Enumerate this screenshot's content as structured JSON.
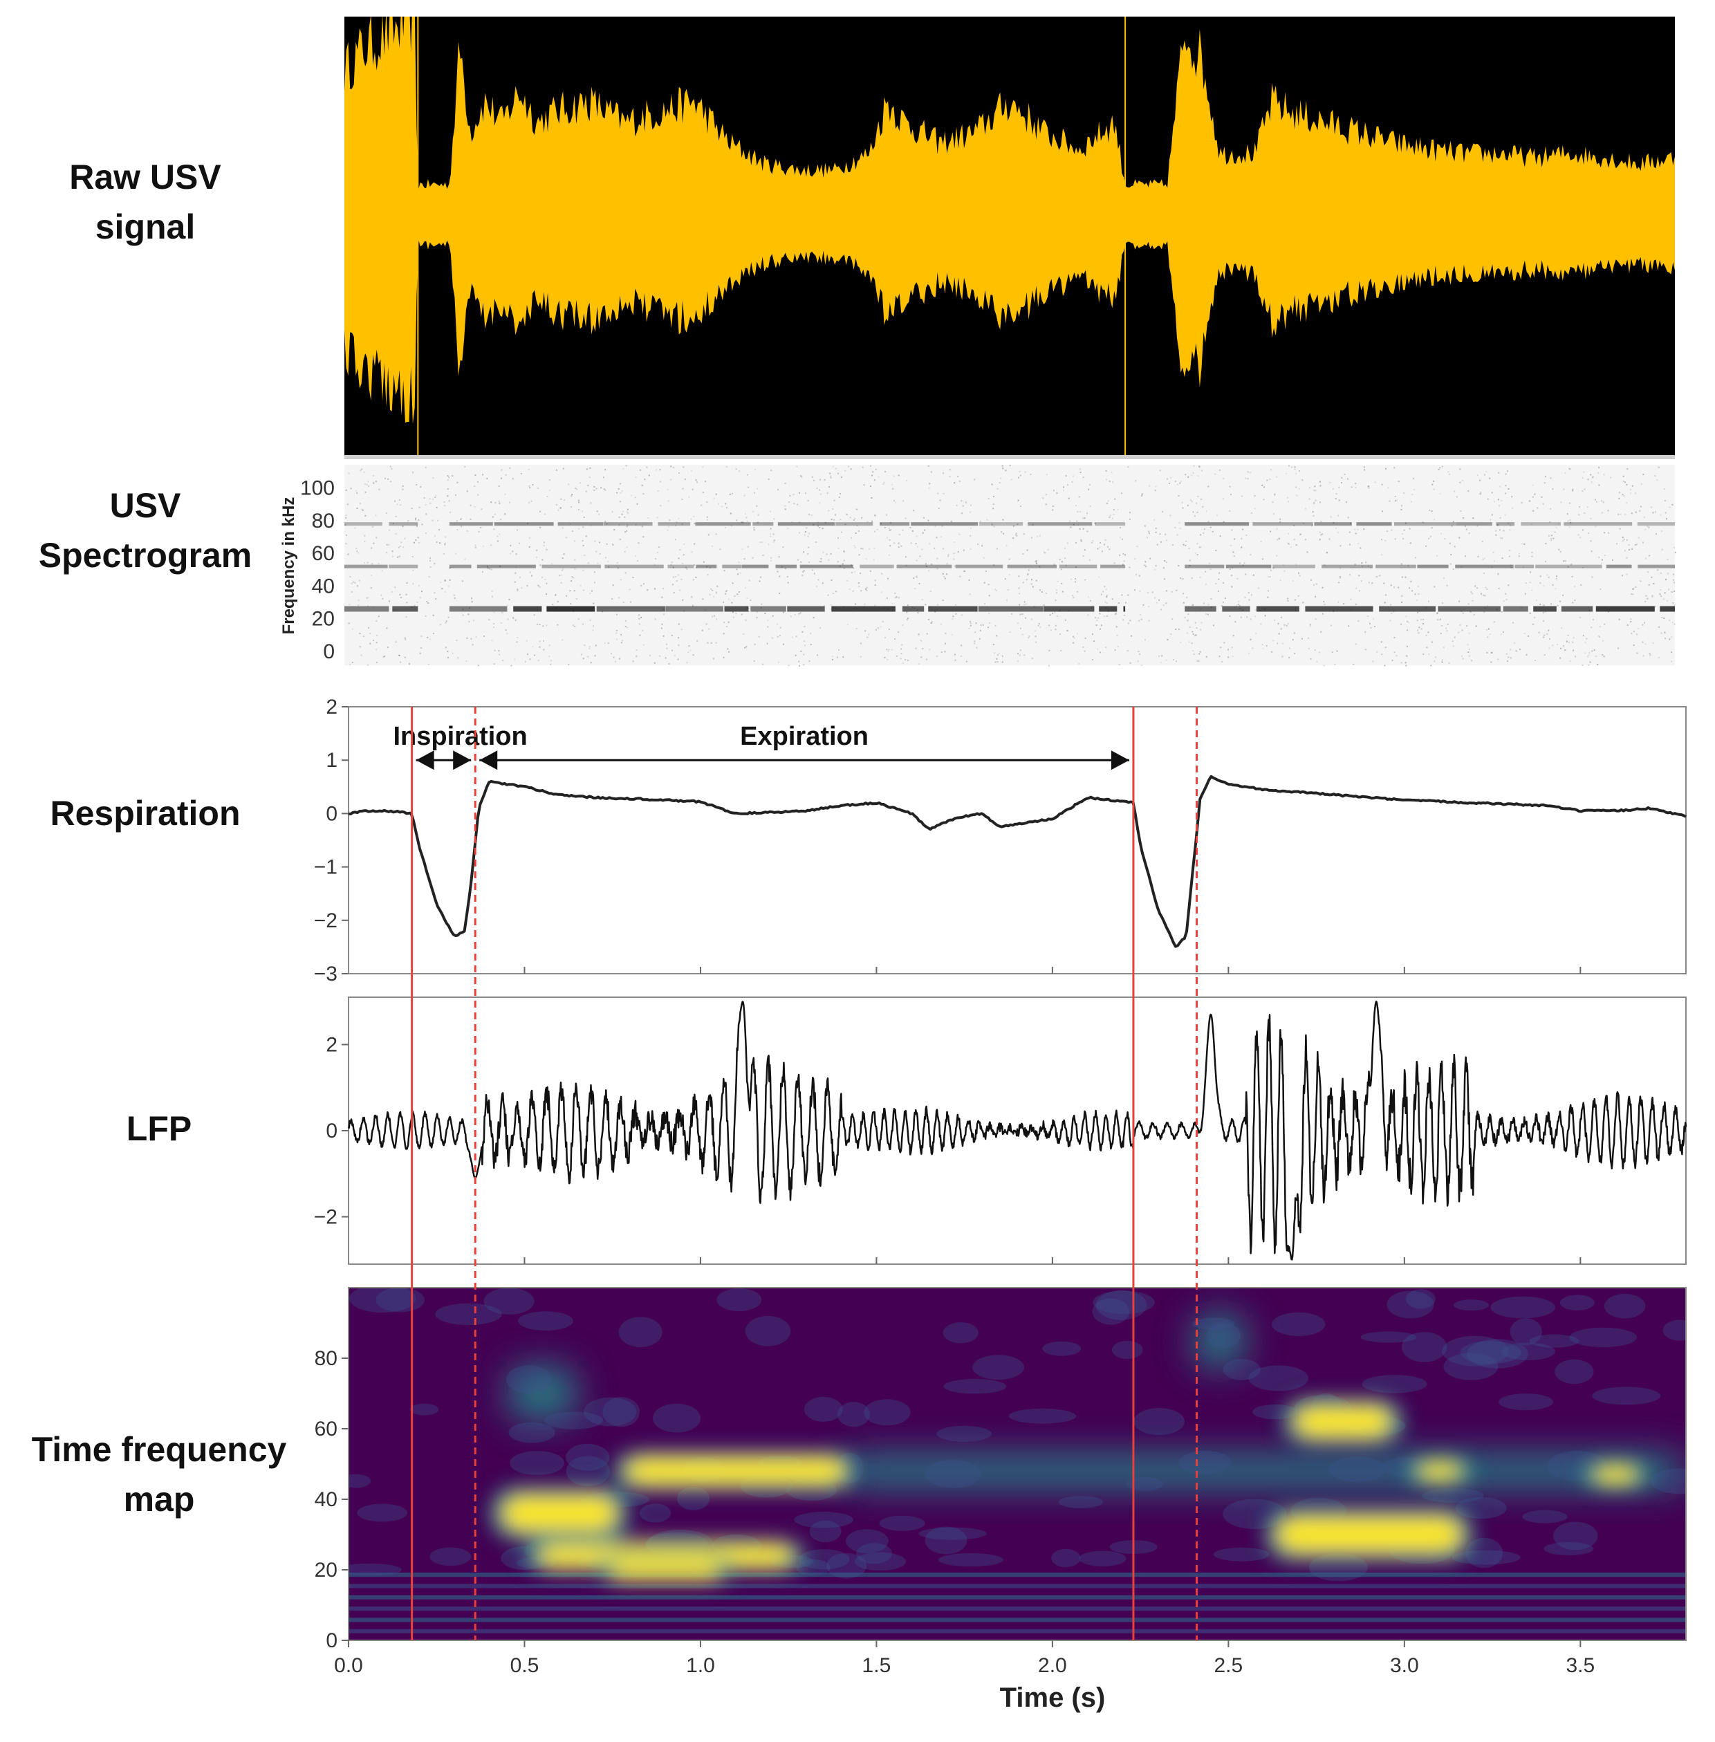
{
  "panel_labels": {
    "raw": [
      "Raw USV",
      "signal"
    ],
    "spectrogram": [
      "USV",
      "Spectrogram"
    ],
    "respiration": "Respiration",
    "lfp": "LFP",
    "tfmap": [
      "Time frequency",
      "map"
    ]
  },
  "colors": {
    "raw_bg": "#000000",
    "raw_signal": "#FFC000",
    "trace": "#222222",
    "marker": "#E8403A",
    "tf_low": "#440154",
    "tf_mid": "#21918C",
    "tf_high": "#FDE725"
  },
  "chart_data": [
    {
      "id": "raw_usv",
      "type": "area",
      "description_hidden": true,
      "x_range": [
        0.0,
        3.8
      ],
      "envelope": {
        "x": [
          0.0,
          0.05,
          0.1,
          0.15,
          0.2,
          0.21,
          0.3,
          0.33,
          0.36,
          0.4,
          0.45,
          0.5,
          0.55,
          0.6,
          0.7,
          0.8,
          0.9,
          1.0,
          1.1,
          1.2,
          1.3,
          1.4,
          1.5,
          1.55,
          1.6,
          1.7,
          1.8,
          1.9,
          2.0,
          2.1,
          2.2,
          2.23,
          2.3,
          2.35,
          2.4,
          2.45,
          2.5,
          2.6,
          2.65,
          2.7,
          2.8,
          2.9,
          3.0,
          3.1,
          3.2,
          3.3,
          3.4,
          3.5,
          3.6,
          3.7,
          3.8
        ],
        "amp": [
          0.7,
          0.8,
          0.85,
          0.9,
          0.95,
          0.15,
          0.15,
          0.82,
          0.4,
          0.55,
          0.45,
          0.6,
          0.45,
          0.5,
          0.55,
          0.45,
          0.5,
          0.55,
          0.35,
          0.25,
          0.22,
          0.22,
          0.3,
          0.55,
          0.45,
          0.35,
          0.4,
          0.55,
          0.4,
          0.32,
          0.45,
          0.15,
          0.15,
          0.15,
          0.9,
          0.75,
          0.3,
          0.3,
          0.55,
          0.5,
          0.45,
          0.4,
          0.35,
          0.32,
          0.3,
          0.3,
          0.28,
          0.3,
          0.28,
          0.25,
          0.28
        ]
      }
    },
    {
      "id": "usv_spectrogram",
      "type": "heatmap",
      "ylabel": "Frequency in kHz",
      "y_ticks": [
        0,
        20,
        40,
        60,
        80,
        100
      ],
      "ylim": [
        0,
        110
      ],
      "x_range": [
        0.0,
        3.8
      ],
      "bands_khz": [
        26,
        52,
        78
      ],
      "call_segments": [
        [
          0.0,
          0.21
        ],
        [
          0.3,
          2.23
        ],
        [
          2.4,
          3.8
        ]
      ]
    },
    {
      "id": "respiration",
      "type": "line",
      "ylim": [
        -3,
        2
      ],
      "y_ticks": [
        2,
        1,
        0,
        -1,
        -2,
        -3
      ],
      "x_range": [
        0.0,
        3.8
      ],
      "x": [
        0.0,
        0.05,
        0.1,
        0.15,
        0.18,
        0.2,
        0.25,
        0.3,
        0.33,
        0.35,
        0.37,
        0.4,
        0.5,
        0.6,
        0.7,
        0.8,
        0.9,
        1.0,
        1.1,
        1.2,
        1.3,
        1.4,
        1.5,
        1.6,
        1.65,
        1.7,
        1.75,
        1.8,
        1.85,
        1.9,
        2.0,
        2.1,
        2.23,
        2.25,
        2.3,
        2.35,
        2.38,
        2.4,
        2.42,
        2.45,
        2.5,
        2.6,
        2.8,
        3.0,
        3.2,
        3.4,
        3.5,
        3.6,
        3.7,
        3.8
      ],
      "y": [
        0.0,
        0.05,
        0.05,
        0.03,
        0.0,
        -0.6,
        -1.7,
        -2.3,
        -2.2,
        -1.2,
        0.1,
        0.6,
        0.5,
        0.35,
        0.3,
        0.28,
        0.25,
        0.22,
        0.0,
        0.02,
        0.05,
        0.15,
        0.2,
        0.0,
        -0.3,
        -0.15,
        -0.05,
        0.0,
        -0.25,
        -0.2,
        -0.1,
        0.3,
        0.2,
        -0.6,
        -1.8,
        -2.5,
        -2.3,
        -1.0,
        0.3,
        0.7,
        0.55,
        0.45,
        0.35,
        0.25,
        0.2,
        0.15,
        0.05,
        0.05,
        0.1,
        -0.05
      ],
      "annotations": [
        {
          "text": "Inspiration",
          "from": 0.18,
          "to": 0.36
        },
        {
          "text": "Expiration",
          "from": 0.36,
          "to": 2.23
        }
      ]
    },
    {
      "id": "lfp",
      "type": "line",
      "ylim": [
        -3.1,
        3.1
      ],
      "y_ticks": [
        2,
        0,
        -2
      ],
      "x_range": [
        0.0,
        3.8
      ],
      "osc_segments": [
        {
          "from": 0.0,
          "to": 0.35,
          "amp": 0.4,
          "period": 0.035
        },
        {
          "from": 0.38,
          "to": 1.4,
          "amp": 1.7,
          "period": 0.042
        },
        {
          "from": 1.4,
          "to": 2.23,
          "amp": 0.6,
          "period": 0.03
        },
        {
          "from": 2.23,
          "to": 2.4,
          "amp": 0.3,
          "period": 0.04
        },
        {
          "from": 2.55,
          "to": 3.2,
          "amp": 2.6,
          "period": 0.035
        },
        {
          "from": 3.2,
          "to": 3.8,
          "amp": 0.8,
          "period": 0.033
        }
      ],
      "events": [
        {
          "x": 0.36,
          "y": -1.1
        },
        {
          "x": 1.12,
          "y": 3.0
        },
        {
          "x": 2.45,
          "y": 2.7
        },
        {
          "x": 2.68,
          "y": -3.0
        },
        {
          "x": 2.92,
          "y": 3.0
        }
      ]
    },
    {
      "id": "time_frequency_map",
      "type": "heatmap",
      "ylim": [
        0,
        100
      ],
      "y_ticks": [
        0,
        20,
        40,
        60,
        80
      ],
      "x_ticks": [
        0.0,
        0.5,
        1.0,
        1.5,
        2.0,
        2.5,
        3.0,
        3.5
      ],
      "x_tick_labels": [
        "0.0",
        "0.5",
        "1.0",
        "1.5",
        "2.0",
        "2.5",
        "3.0",
        "3.5"
      ],
      "xlabel": "Time (s)",
      "x_range": [
        0.0,
        3.8
      ],
      "hotspots": [
        {
          "x0": 0.4,
          "x1": 0.8,
          "y": 36,
          "h": 8
        },
        {
          "x0": 0.5,
          "x1": 1.3,
          "y": 24,
          "h": 5
        },
        {
          "x0": 0.7,
          "x1": 1.1,
          "y": 20,
          "h": 4
        },
        {
          "x0": 0.75,
          "x1": 1.45,
          "y": 48,
          "h": 6
        },
        {
          "x0": 2.6,
          "x1": 3.2,
          "y": 30,
          "h": 8
        },
        {
          "x0": 2.65,
          "x1": 3.0,
          "y": 62,
          "h": 7
        },
        {
          "x0": 3.0,
          "x1": 3.2,
          "y": 48,
          "h": 4
        },
        {
          "x0": 3.5,
          "x1": 3.7,
          "y": 47,
          "h": 4
        }
      ],
      "teal_regions": [
        {
          "x0": 0.45,
          "x1": 0.65,
          "y": 70,
          "h": 8
        },
        {
          "x0": 2.4,
          "x1": 2.55,
          "y": 85,
          "h": 8
        },
        {
          "x0": 1.4,
          "x1": 3.8,
          "y": 48,
          "h": 5
        }
      ]
    }
  ],
  "markers": {
    "solid": [
      0.18,
      2.23
    ],
    "dashed": [
      0.36,
      2.41
    ]
  }
}
